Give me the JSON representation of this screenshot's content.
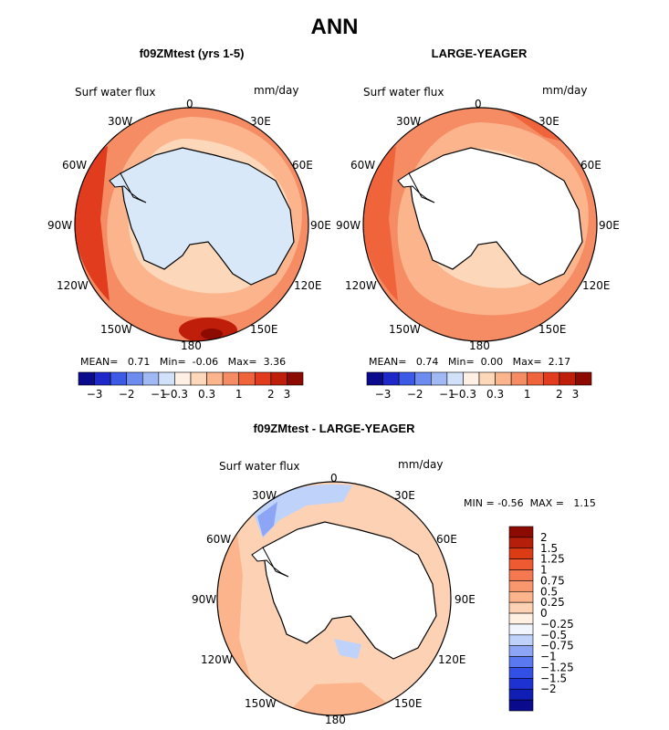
{
  "title": "ANN",
  "panels": [
    {
      "id": "test",
      "title": "f09ZMtest (yrs 1-5)",
      "field_label": "Surf water flux",
      "units": "mm/day",
      "stats": {
        "mean_label": "MEAN=",
        "mean": "0.71",
        "min_label": "Min=",
        "min": "-0.06",
        "max_label": "Max=",
        "max": "3.36"
      },
      "land_fill": "#d8e8f8"
    },
    {
      "id": "obs",
      "title": "LARGE-YEAGER",
      "field_label": "Surf water flux",
      "units": "mm/day",
      "stats": {
        "mean_label": "MEAN=",
        "mean": "0.74",
        "min_label": "Min=",
        "min": "0.00",
        "max_label": "Max=",
        "max": "2.17"
      },
      "land_fill": "#ffffff"
    }
  ],
  "diff_panel": {
    "title": "f09ZMtest - LARGE-YEAGER",
    "field_label": "Surf water flux",
    "units": "mm/day",
    "min_label": "MIN =",
    "min": "-0.56",
    "max_label": "MAX =",
    "max": "1.15"
  },
  "longitude_labels": [
    "0",
    "30E",
    "60E",
    "90E",
    "120E",
    "150E",
    "180",
    "150W",
    "120W",
    "90W",
    "60W",
    "30W"
  ],
  "colorbar_top": {
    "colors": [
      "#0a0a8c",
      "#1e28c8",
      "#3c5ae6",
      "#6e8cf0",
      "#a0b9f5",
      "#d2e1fa",
      "#fff0e6",
      "#fdd7b9",
      "#fbb48c",
      "#f58c64",
      "#f0643c",
      "#e13c1e",
      "#be1e0a",
      "#8c0a00"
    ],
    "tick_labels": [
      "-3",
      "-2",
      "-1",
      "-0.3",
      "0.3",
      "1",
      "2",
      "3"
    ]
  },
  "colorbar_diff": {
    "colors": [
      "#0a0a8c",
      "#0f1eb4",
      "#1e32d2",
      "#3250e6",
      "#5a78f0",
      "#8ca5f5",
      "#bed2fa",
      "#f0f5ff",
      "#fff0e1",
      "#fdd2b4",
      "#fbb48c",
      "#f8966e",
      "#f57850",
      "#ee5a32",
      "#dc3c14",
      "#b41e0a",
      "#8c0a00"
    ],
    "labels": [
      "2",
      "1.5",
      "1.25",
      "1",
      "0.75",
      "0.5",
      "0.25",
      "0",
      "-0.25",
      "-0.5",
      "-0.75",
      "-1",
      "-1.25",
      "-1.5",
      "-2"
    ]
  }
}
